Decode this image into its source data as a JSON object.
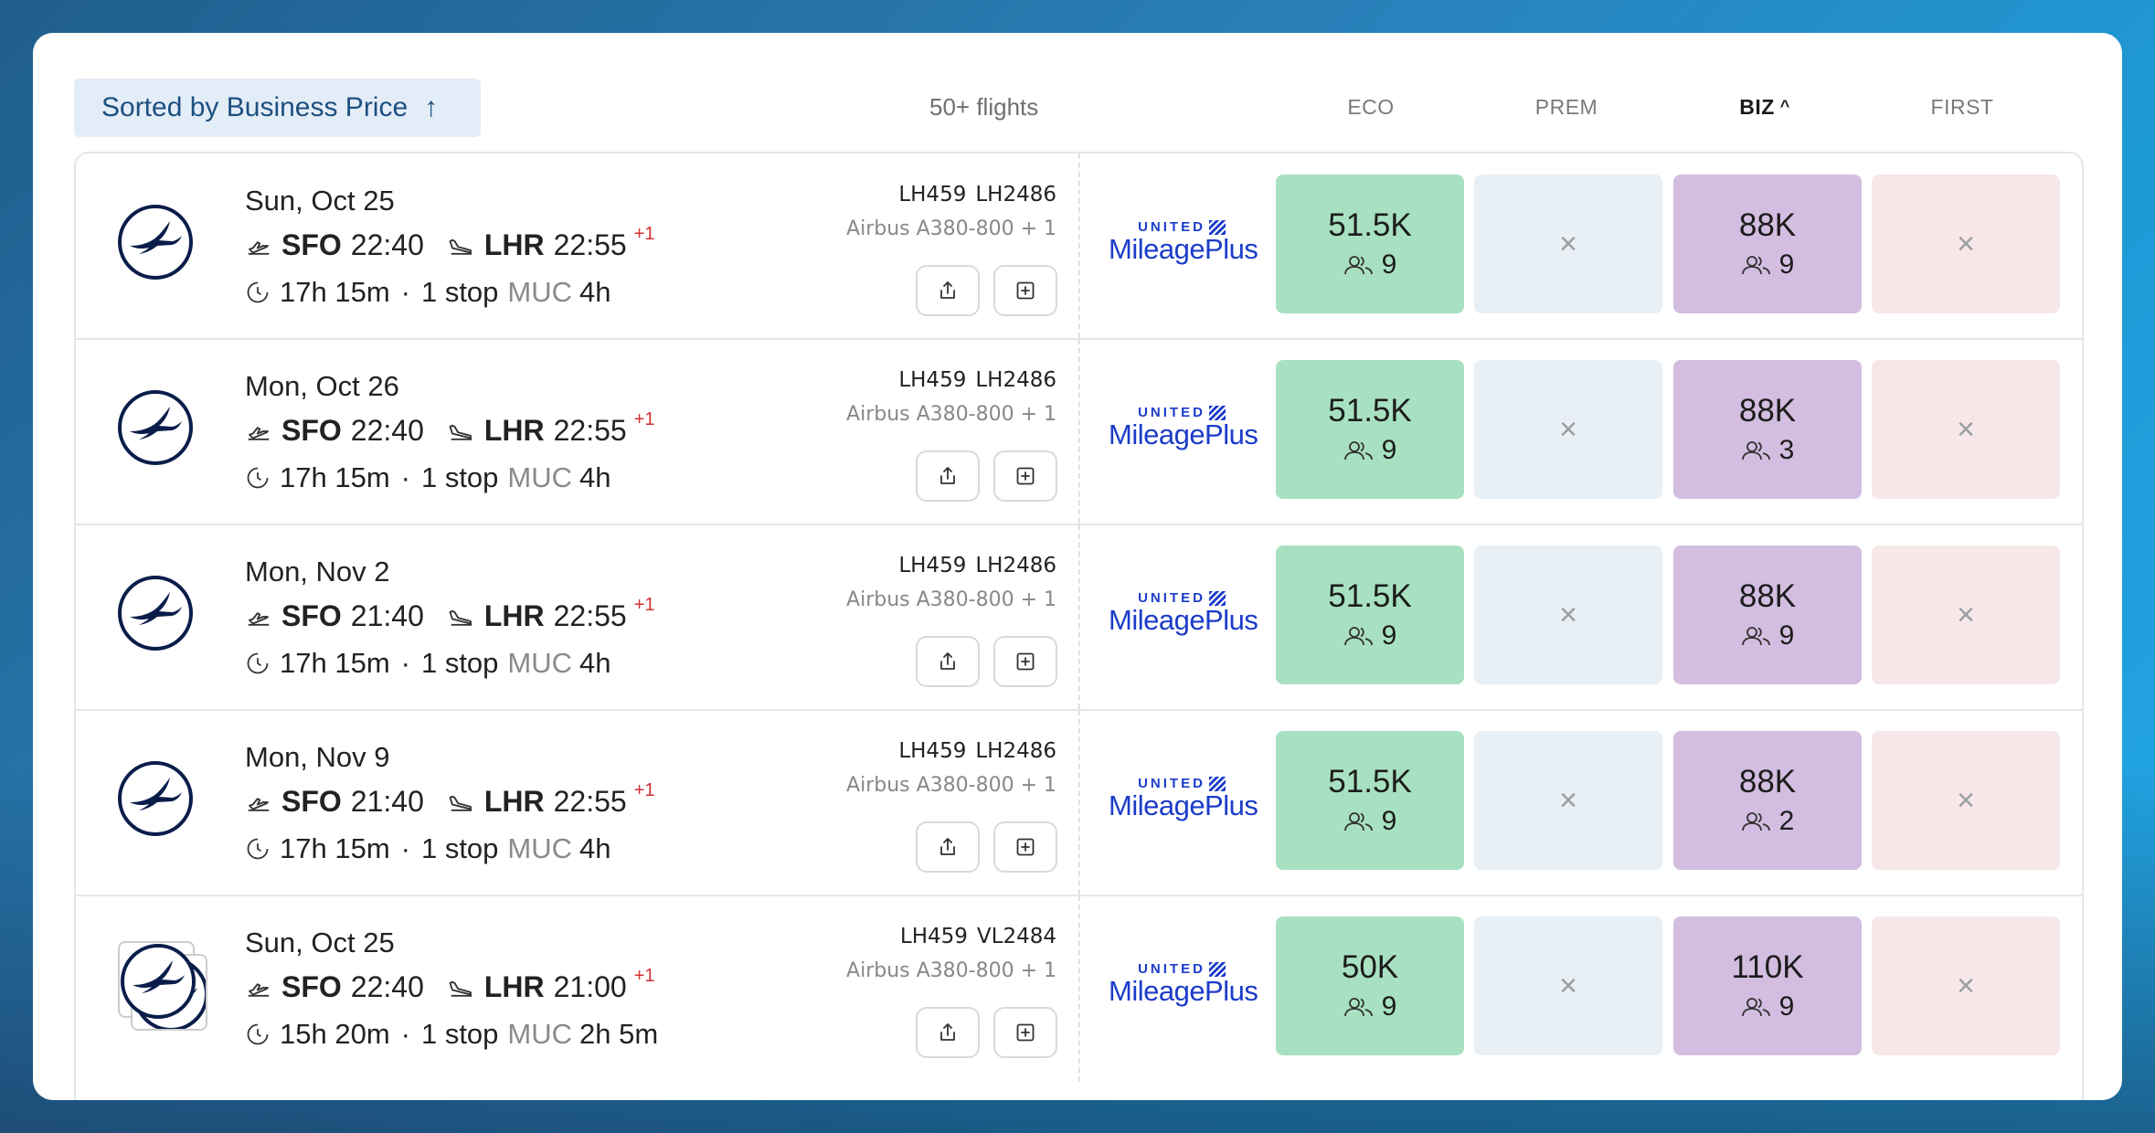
{
  "header": {
    "sort_label": "Sorted by Business Price",
    "sort_arrow": "↑",
    "flight_count": "50+ flights",
    "columns": [
      {
        "label": "ECO",
        "active": false
      },
      {
        "label": "PREM",
        "active": false
      },
      {
        "label": "BIZ",
        "active": true
      },
      {
        "label": "FIRST",
        "active": false
      }
    ],
    "biz_chevron": "^"
  },
  "icons": {
    "airline_logo": "lufthansa-crane-logo",
    "departure": "plane-takeoff-icon",
    "arrival": "plane-landing-icon",
    "duration": "clock-icon",
    "share": "share-icon",
    "add": "plus-square-icon",
    "seats": "people-icon",
    "unavailable": "close-icon"
  },
  "colors": {
    "eco": "#a8e1c1",
    "prem": "#e8eff5",
    "biz": "#d3bde0",
    "first": "#f7e7e8",
    "accent": "#1e4f80",
    "program": "#1b3cc9"
  },
  "rows": [
    {
      "date": "Sun, Oct 25",
      "from": "SFO",
      "depart": "22:40",
      "to": "LHR",
      "arrive": "22:55",
      "day_offset": "+1",
      "duration": "17h 15m",
      "dot": "·",
      "stops": "1 stop",
      "stop_code": "MUC",
      "layover": "4h",
      "flight1": "LH459",
      "flight2": "LH2486",
      "aircraft": "Airbus A380-800 + 1",
      "program_top": "UNITED",
      "program_name": "MileagePlus",
      "eco_price": "51.5K",
      "eco_seats": "9",
      "prem": "×",
      "biz_price": "88K",
      "biz_seats": "9",
      "first": "×",
      "logo_stack": false
    },
    {
      "date": "Mon, Oct 26",
      "from": "SFO",
      "depart": "22:40",
      "to": "LHR",
      "arrive": "22:55",
      "day_offset": "+1",
      "duration": "17h 15m",
      "dot": "·",
      "stops": "1 stop",
      "stop_code": "MUC",
      "layover": "4h",
      "flight1": "LH459",
      "flight2": "LH2486",
      "aircraft": "Airbus A380-800 + 1",
      "program_top": "UNITED",
      "program_name": "MileagePlus",
      "eco_price": "51.5K",
      "eco_seats": "9",
      "prem": "×",
      "biz_price": "88K",
      "biz_seats": "3",
      "first": "×",
      "logo_stack": false
    },
    {
      "date": "Mon, Nov 2",
      "from": "SFO",
      "depart": "21:40",
      "to": "LHR",
      "arrive": "22:55",
      "day_offset": "+1",
      "duration": "17h 15m",
      "dot": "·",
      "stops": "1 stop",
      "stop_code": "MUC",
      "layover": "4h",
      "flight1": "LH459",
      "flight2": "LH2486",
      "aircraft": "Airbus A380-800 + 1",
      "program_top": "UNITED",
      "program_name": "MileagePlus",
      "eco_price": "51.5K",
      "eco_seats": "9",
      "prem": "×",
      "biz_price": "88K",
      "biz_seats": "9",
      "first": "×",
      "logo_stack": false
    },
    {
      "date": "Mon, Nov 9",
      "from": "SFO",
      "depart": "21:40",
      "to": "LHR",
      "arrive": "22:55",
      "day_offset": "+1",
      "duration": "17h 15m",
      "dot": "·",
      "stops": "1 stop",
      "stop_code": "MUC",
      "layover": "4h",
      "flight1": "LH459",
      "flight2": "LH2486",
      "aircraft": "Airbus A380-800 + 1",
      "program_top": "UNITED",
      "program_name": "MileagePlus",
      "eco_price": "51.5K",
      "eco_seats": "9",
      "prem": "×",
      "biz_price": "88K",
      "biz_seats": "2",
      "first": "×",
      "logo_stack": false
    },
    {
      "date": "Sun, Oct 25",
      "from": "SFO",
      "depart": "22:40",
      "to": "LHR",
      "arrive": "21:00",
      "day_offset": "+1",
      "duration": "15h 20m",
      "dot": "·",
      "stops": "1 stop",
      "stop_code": "MUC",
      "layover": "2h 5m",
      "flight1": "LH459",
      "flight2": "VL2484",
      "aircraft": "Airbus A380-800 + 1",
      "program_top": "UNITED",
      "program_name": "MileagePlus",
      "eco_price": "50K",
      "eco_seats": "9",
      "prem": "×",
      "biz_price": "110K",
      "biz_seats": "9",
      "first": "×",
      "logo_stack": true
    }
  ]
}
